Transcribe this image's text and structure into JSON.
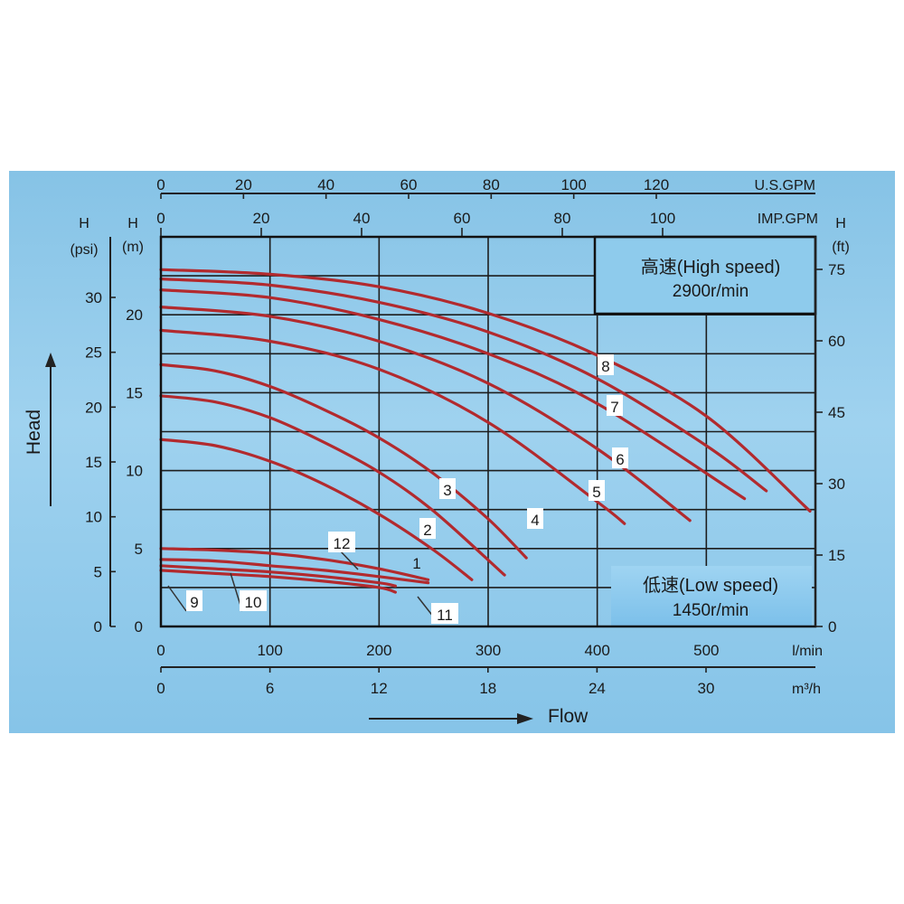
{
  "chart_data": {
    "type": "line",
    "x_axis_label": "Flow",
    "y_axis_label": "Head",
    "x_units": {
      "lmin": {
        "label": "l/min",
        "ticks": [
          "0",
          "100",
          "200",
          "300",
          "400",
          "500"
        ],
        "range": [
          0,
          600
        ]
      },
      "m3h": {
        "label": "m³/h",
        "ticks": [
          "0",
          "6",
          "12",
          "18",
          "24",
          "30"
        ],
        "range": [
          0,
          36
        ]
      },
      "us_gpm": {
        "label": "U.S.GPM",
        "ticks": [
          "0",
          "20",
          "40",
          "60",
          "80",
          "100",
          "120"
        ]
      },
      "imp_gpm": {
        "label": "IMP.GPM",
        "ticks": [
          "0",
          "20",
          "40",
          "60",
          "80",
          "100"
        ]
      }
    },
    "y_units": {
      "psi": {
        "label_top": "H",
        "label_unit": "(psi)",
        "ticks": [
          "0",
          "5",
          "10",
          "15",
          "20",
          "25",
          "30"
        ]
      },
      "m": {
        "label_top": "H",
        "label_unit": "(m)",
        "ticks": [
          "0",
          "5",
          "10",
          "15",
          "20"
        ],
        "range": [
          0,
          25
        ]
      },
      "ft": {
        "label_top": "H",
        "label_unit": "(ft)",
        "ticks": [
          "0",
          "15",
          "30",
          "45",
          "60",
          "75"
        ]
      }
    },
    "legend_high": {
      "line1": "高速(High speed)",
      "line2": "2900r/min"
    },
    "legend_low": {
      "line1": "低速(Low speed)",
      "line2": "1450r/min"
    },
    "curve_color": "#b22a2e",
    "series": [
      {
        "name": "1",
        "x": [
          0,
          50,
          100,
          150,
          200,
          250,
          285
        ],
        "y": [
          12.0,
          11.6,
          10.6,
          9.1,
          7.2,
          4.9,
          3.0
        ]
      },
      {
        "name": "2",
        "x": [
          0,
          50,
          100,
          150,
          200,
          250,
          315
        ],
        "y": [
          14.8,
          14.4,
          13.4,
          11.8,
          9.9,
          7.4,
          3.3
        ]
      },
      {
        "name": "3",
        "x": [
          0,
          50,
          100,
          150,
          200,
          250,
          300,
          335
        ],
        "y": [
          16.8,
          16.4,
          15.4,
          13.9,
          12.1,
          9.8,
          6.9,
          4.4
        ]
      },
      {
        "name": "4",
        "x": [
          0,
          100,
          200,
          300,
          400,
          425
        ],
        "y": [
          19.0,
          18.3,
          16.5,
          13.1,
          8.0,
          6.6
        ]
      },
      {
        "name": "5",
        "x": [
          0,
          100,
          200,
          300,
          400,
          485
        ],
        "y": [
          20.5,
          19.9,
          18.3,
          15.6,
          11.4,
          6.8
        ]
      },
      {
        "name": "6",
        "x": [
          0,
          100,
          200,
          300,
          400,
          535
        ],
        "y": [
          21.6,
          21.1,
          19.7,
          17.5,
          14.3,
          8.2
        ]
      },
      {
        "name": "7",
        "x": [
          0,
          100,
          200,
          300,
          400,
          500,
          555
        ],
        "y": [
          22.3,
          21.9,
          20.8,
          18.9,
          15.9,
          11.6,
          8.7
        ]
      },
      {
        "name": "8",
        "x": [
          0,
          100,
          200,
          300,
          400,
          500,
          595
        ],
        "y": [
          22.9,
          22.6,
          21.8,
          20.1,
          17.4,
          13.5,
          7.4
        ]
      },
      {
        "name": "9",
        "x": [
          0,
          50,
          100,
          150,
          200,
          215
        ],
        "y": [
          3.6,
          3.4,
          3.2,
          2.9,
          2.5,
          2.2
        ]
      },
      {
        "name": "10",
        "x": [
          0,
          50,
          100,
          150,
          200,
          215
        ],
        "y": [
          3.9,
          3.7,
          3.5,
          3.2,
          2.8,
          2.6
        ]
      },
      {
        "name": "11",
        "x": [
          0,
          50,
          100,
          150,
          200,
          245
        ],
        "y": [
          4.3,
          4.2,
          3.9,
          3.6,
          3.2,
          2.8
        ]
      },
      {
        "name": "12",
        "x": [
          0,
          50,
          100,
          150,
          200,
          245
        ],
        "y": [
          5.0,
          4.9,
          4.7,
          4.3,
          3.7,
          3.0
        ]
      }
    ]
  }
}
